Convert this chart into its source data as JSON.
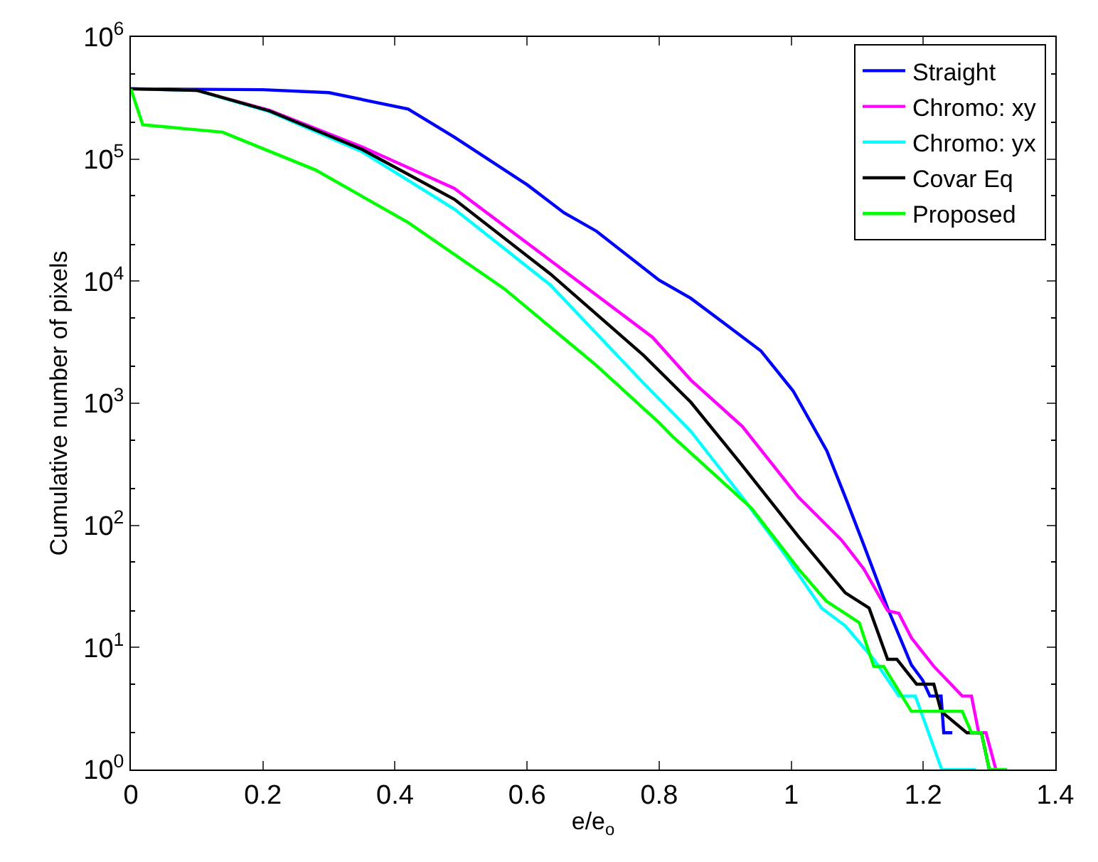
{
  "chart_data": {
    "type": "line",
    "xlabel": "e/e$_{o}$",
    "ylabel": "Cumulative number of pixels",
    "xlim": [
      0,
      1.4
    ],
    "xticks": [
      0,
      0.2,
      0.4,
      0.6,
      0.8,
      1,
      1.2,
      1.4
    ],
    "ylim": [
      1,
      1000000
    ],
    "log": true,
    "yticks": [
      {
        "value": 1,
        "label": "10$^{0}$"
      },
      {
        "value": 10,
        "label": "10$^{1}$"
      },
      {
        "value": 100,
        "label": "10$^{2}$"
      },
      {
        "value": 1000,
        "label": "10$^{3}$"
      },
      {
        "value": 10000,
        "label": "10$^{4}$"
      },
      {
        "value": 100000,
        "label": "10$^{5}$"
      },
      {
        "value": 1000000,
        "label": "10$^{6}$"
      }
    ],
    "legend": "top right",
    "marker": "none",
    "line_style": "solid",
    "series": [
      {
        "name": "Straight",
        "color": "#0000ff",
        "x": [
          0,
          0.2,
          0.3,
          0.42,
          0.49,
          0.6,
          0.656,
          0.705,
          0.8,
          0.848,
          0.954,
          1.003,
          1.054,
          1.082,
          1.11,
          1.146,
          1.182,
          1.199,
          1.21,
          1.227,
          1.231,
          1.244
        ],
        "values": [
          376000,
          370000,
          350000,
          257000,
          151000,
          61700,
          36300,
          25700,
          10200,
          7240,
          2690,
          1260,
          407,
          170,
          69,
          21,
          7.2,
          5.4,
          4,
          4,
          2,
          2
        ]
      },
      {
        "name": "Chromo: xy",
        "color": "#ff00ff",
        "x": [
          0,
          0.1,
          0.21,
          0.35,
          0.49,
          0.635,
          0.79,
          0.848,
          0.926,
          1.011,
          1.076,
          1.11,
          1.146,
          1.163,
          1.182,
          1.216,
          1.259,
          1.273,
          1.284,
          1.295,
          1.31
        ],
        "values": [
          376000,
          365000,
          251000,
          126000,
          57500,
          14800,
          3470,
          1550,
          646,
          170,
          76,
          44,
          20,
          19,
          12,
          7,
          4,
          4,
          2,
          2,
          1
        ]
      },
      {
        "name": "Chromo: yx",
        "color": "#00ffff",
        "x": [
          0,
          0.1,
          0.21,
          0.35,
          0.49,
          0.635,
          0.777,
          0.848,
          0.926,
          0.99,
          1.046,
          1.082,
          1.125,
          1.163,
          1.188,
          1.228,
          1.28
        ],
        "values": [
          376000,
          365000,
          245000,
          115000,
          38900,
          9330,
          1450,
          589,
          170,
          58,
          21,
          15,
          8,
          4,
          4,
          1,
          1
        ]
      },
      {
        "name": "Covar Eq",
        "color": "#000000",
        "x": [
          0,
          0.1,
          0.21,
          0.35,
          0.49,
          0.635,
          0.777,
          0.848,
          0.926,
          1.011,
          1.082,
          1.118,
          1.146,
          1.16,
          1.19,
          1.216,
          1.227,
          1.266,
          1.288,
          1.3
        ],
        "values": [
          376000,
          366000,
          248000,
          120000,
          46800,
          11500,
          2450,
          1020,
          309,
          81,
          28,
          21,
          8,
          8,
          5,
          5,
          3,
          2,
          2,
          1
        ]
      },
      {
        "name": "Proposed",
        "color": "#00ff00",
        "x": [
          0,
          0.018,
          0.139,
          0.28,
          0.42,
          0.565,
          0.656,
          0.705,
          0.8,
          0.82,
          0.94,
          1.011,
          1.053,
          1.103,
          1.125,
          1.14,
          1.182,
          1.259,
          1.273,
          1.288,
          1.3,
          1.327
        ],
        "values": [
          376000,
          191000,
          166000,
          81300,
          30200,
          8710,
          3390,
          2040,
          692,
          537,
          138,
          44,
          24,
          16,
          7,
          7,
          3,
          3,
          2,
          2,
          1,
          1
        ]
      }
    ]
  }
}
